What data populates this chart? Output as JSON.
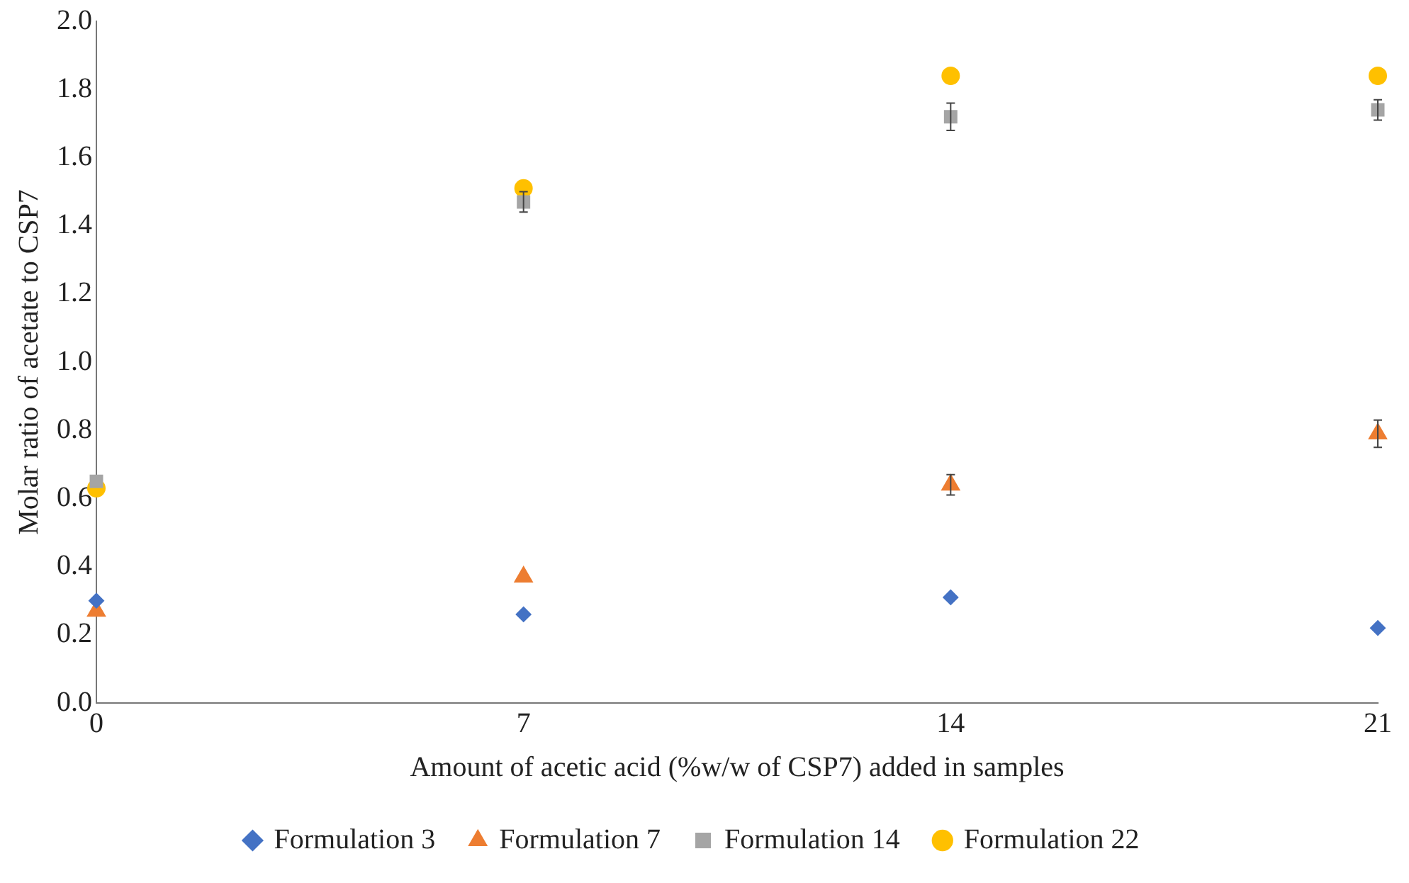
{
  "chart_data": {
    "type": "scatter",
    "xlabel": "Amount of acetic acid (%w/w of CSP7) added in samples",
    "ylabel": "Molar ratio of acetate to CSP7",
    "x": [
      0,
      7,
      14,
      21
    ],
    "xlim": [
      0,
      21
    ],
    "xticks": [
      0,
      7,
      14,
      21
    ],
    "ylim": [
      0,
      2
    ],
    "yticks": [
      {
        "value": 0,
        "label": "0.0"
      },
      {
        "value": 0.2,
        "label": "0.2"
      },
      {
        "value": 0.4,
        "label": "0.4"
      },
      {
        "value": 0.6,
        "label": "0.6"
      },
      {
        "value": 0.8,
        "label": "0.8"
      },
      {
        "value": 1,
        "label": "1.0"
      },
      {
        "value": 1.2,
        "label": "1.2"
      },
      {
        "value": 1.4,
        "label": "1.4"
      },
      {
        "value": 1.6,
        "label": "1.6"
      },
      {
        "value": 1.8,
        "label": "1.8"
      },
      {
        "value": 2,
        "label": "2.0"
      }
    ],
    "grid": false,
    "legend": "bottom",
    "series": [
      {
        "name": "Formulation 3",
        "color": "#4472c4",
        "marker": "diamond",
        "values": [
          0.3,
          0.26,
          0.31,
          0.22
        ]
      },
      {
        "name": "Formulation 7",
        "color": "#ed7d31",
        "marker": "triangle",
        "values": [
          0.27,
          0.37,
          0.64,
          0.79
        ],
        "errors": [
          null,
          null,
          0.03,
          0.04
        ]
      },
      {
        "name": "Formulation 14",
        "color": "#a5a5a5",
        "marker": "square",
        "values": [
          0.65,
          1.47,
          1.72,
          1.74
        ],
        "errors": [
          null,
          0.03,
          0.04,
          0.03
        ]
      },
      {
        "name": "Formulation 22",
        "color": "#ffc000",
        "marker": "circle",
        "values": [
          0.63,
          1.51,
          1.84,
          1.84
        ]
      }
    ]
  }
}
